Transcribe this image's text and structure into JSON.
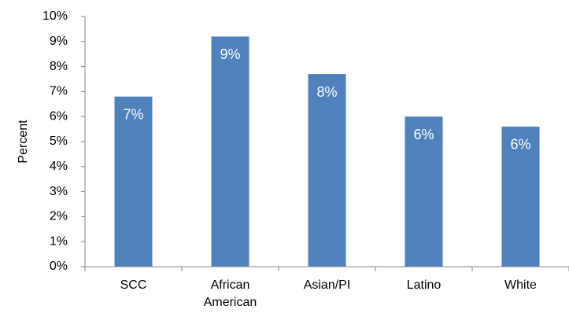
{
  "chart_data": {
    "type": "bar",
    "y_label": "Percent",
    "categories": [
      "SCC",
      "African American",
      "Asian/PI",
      "Latino",
      "White"
    ],
    "values": [
      6.8,
      9.2,
      7.7,
      6.0,
      5.6
    ],
    "value_labels": [
      "7%",
      "9%",
      "8%",
      "6%",
      "6%"
    ],
    "color": "#4f81bd",
    "ylim": [
      0,
      10
    ],
    "yticks": [
      {
        "value": 0,
        "label": "0%"
      },
      {
        "value": 1,
        "label": "1%"
      },
      {
        "value": 2,
        "label": "2%"
      },
      {
        "value": 3,
        "label": "3%"
      },
      {
        "value": 4,
        "label": "4%"
      },
      {
        "value": 5,
        "label": "5%"
      },
      {
        "value": 6,
        "label": "6%"
      },
      {
        "value": 7,
        "label": "7%"
      },
      {
        "value": 8,
        "label": "8%"
      },
      {
        "value": 9,
        "label": "9%"
      },
      {
        "value": 10,
        "label": "10%"
      }
    ],
    "grid": false
  }
}
